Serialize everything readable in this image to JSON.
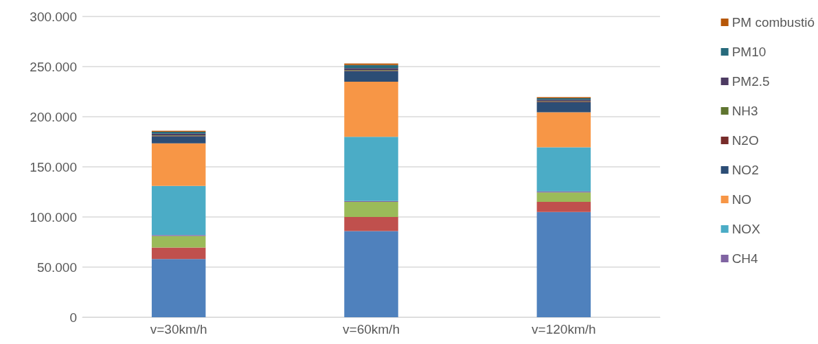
{
  "chart_data": {
    "type": "bar",
    "stacked": true,
    "categories": [
      "v=30km/h",
      "v=60km/h",
      "v=120km/h"
    ],
    "series": [
      {
        "color": "#4f81bd",
        "values": [
          58,
          86,
          105
        ]
      },
      {
        "color": "#c0504d",
        "values": [
          11.5,
          14,
          10
        ]
      },
      {
        "color": "#9bbb59",
        "values": [
          11.5,
          15,
          9.5
        ]
      },
      {
        "name": "CH4",
        "color": "#8064a2",
        "values": [
          1,
          1,
          1
        ]
      },
      {
        "name": "NOX",
        "color": "#4bacc6",
        "values": [
          49,
          64,
          44
        ]
      },
      {
        "name": "NO",
        "color": "#f79646",
        "values": [
          42.5,
          55,
          35
        ]
      },
      {
        "name": "NO2",
        "color": "#2c4d75",
        "values": [
          7,
          10.5,
          10
        ]
      },
      {
        "name": "N2O",
        "color": "#772c2a",
        "values": [
          0.5,
          0.5,
          0.5
        ]
      },
      {
        "name": "NH3",
        "color": "#5f7530",
        "values": [
          0.5,
          0.5,
          0.5
        ]
      },
      {
        "name": "PM2.5",
        "color": "#4d3b62",
        "values": [
          1.5,
          2,
          1.5
        ]
      },
      {
        "name": "PM10",
        "color": "#276a7c",
        "values": [
          2,
          3,
          1.5
        ]
      },
      {
        "name": "PM combustió",
        "color": "#b65708",
        "values": [
          1,
          1.5,
          1
        ]
      }
    ],
    "ylim": [
      0,
      300
    ],
    "yticks": [
      0,
      {
        "value": 50,
        "label": "50.000"
      },
      {
        "value": 100,
        "label": "100.000"
      },
      {
        "value": 150,
        "label": "150.000"
      },
      {
        "value": 200,
        "label": "200.000"
      },
      {
        "value": 250,
        "label": "250.000"
      },
      {
        "value": 300,
        "label": "300.000"
      }
    ],
    "grid": "y",
    "legend": "right"
  }
}
